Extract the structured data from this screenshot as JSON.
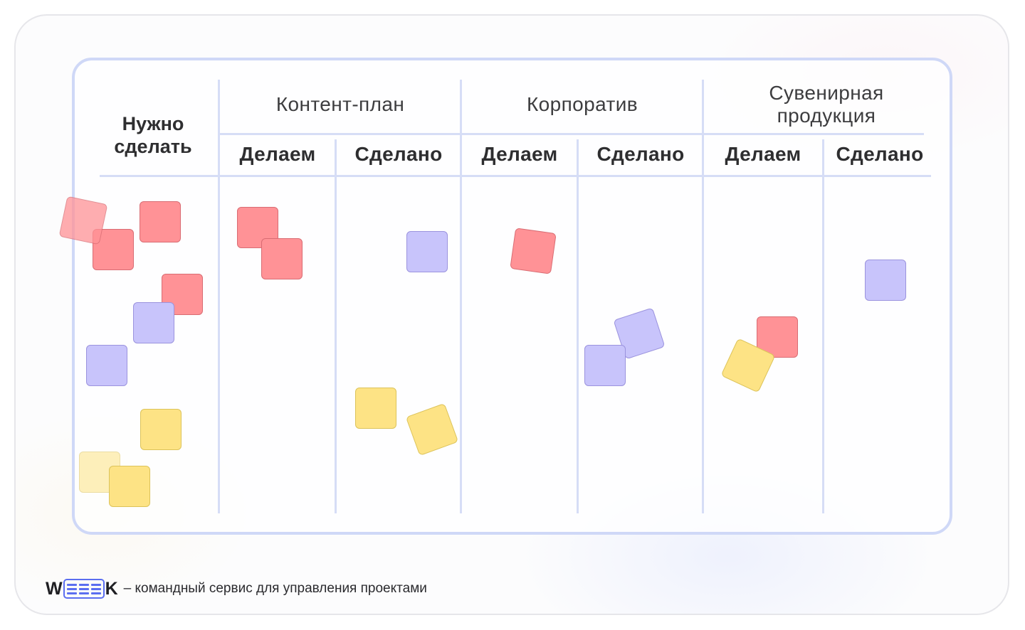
{
  "board": {
    "todo_column": {
      "line1": "Нужно",
      "line2": "сделать"
    },
    "projects": [
      {
        "title": "Контент-план",
        "sub": [
          "Делаем",
          "Сделано"
        ]
      },
      {
        "title": "Корпоратив",
        "sub": [
          "Делаем",
          "Сделано"
        ]
      },
      {
        "title_line1": "Сувенирная",
        "title_line2": "продукция",
        "sub": [
          "Делаем",
          "Сделано"
        ]
      }
    ]
  },
  "notes": {
    "colors": {
      "red": "#ff9296",
      "purple": "#c8c4fb",
      "yellow": "#fde385"
    }
  },
  "footer": {
    "logo_w": "W",
    "logo_k": "K",
    "logo_accent": "#5b6ef0",
    "tagline": "– командный сервис для управления проектами"
  }
}
